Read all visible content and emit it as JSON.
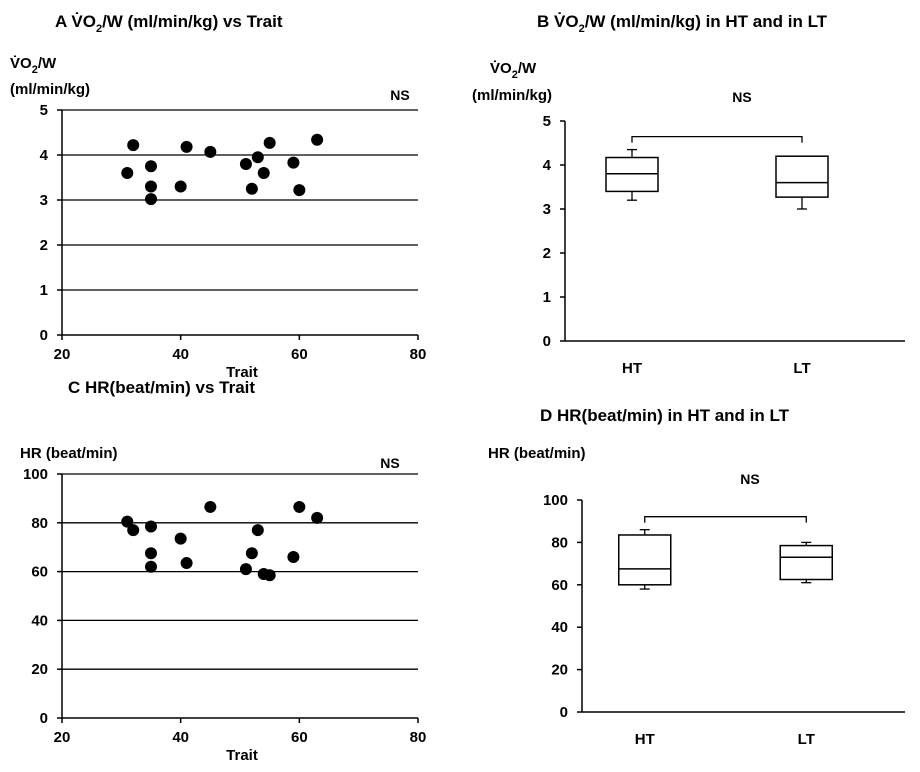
{
  "chart_data": [
    {
      "panel": "A",
      "type": "scatter",
      "title": "VO2/W (ml/min/kg) vs Trait",
      "title_label": "A",
      "title_parts": {
        "sym": "V̇O",
        "sub": "2",
        "rest": "/W (ml/min/kg) vs Trait"
      },
      "ylabel_lines": [
        "V̇O2/W",
        "(ml/min/kg)"
      ],
      "ylabel_parts": {
        "sym": "V̇O",
        "sub": "2",
        "rest": "/W"
      },
      "ylabel_units": "(ml/min/kg)",
      "xlabel": "Trait",
      "xlim": [
        20,
        80
      ],
      "xticks": [
        20,
        40,
        60,
        80
      ],
      "ylim": [
        0,
        5
      ],
      "yticks": [
        0,
        1,
        2,
        3,
        4,
        5
      ],
      "grid": "horizontal",
      "annotation": "NS",
      "points": [
        {
          "x": 31,
          "y": 3.6
        },
        {
          "x": 32,
          "y": 4.22
        },
        {
          "x": 35,
          "y": 3.75
        },
        {
          "x": 35,
          "y": 3.3
        },
        {
          "x": 35,
          "y": 3.02
        },
        {
          "x": 40,
          "y": 3.3
        },
        {
          "x": 41,
          "y": 4.18
        },
        {
          "x": 45,
          "y": 4.07
        },
        {
          "x": 51,
          "y": 3.8
        },
        {
          "x": 52,
          "y": 3.25
        },
        {
          "x": 53,
          "y": 3.95
        },
        {
          "x": 54,
          "y": 3.6
        },
        {
          "x": 55,
          "y": 4.27
        },
        {
          "x": 59,
          "y": 3.83
        },
        {
          "x": 60,
          "y": 3.22
        },
        {
          "x": 63,
          "y": 4.34
        }
      ]
    },
    {
      "panel": "B",
      "type": "box",
      "title": "VO2/W (ml/min/kg) in HT and in LT",
      "title_label": "B",
      "title_parts": {
        "sym": "V̇O",
        "sub": "2",
        "rest": "/W (ml/min/kg) in HT and in LT"
      },
      "ylabel_parts": {
        "sym": "V̇O",
        "sub": "2",
        "rest": "/W"
      },
      "ylabel_units": "(ml/min/kg)",
      "categories": [
        "HT",
        "LT"
      ],
      "ylim": [
        0,
        5
      ],
      "yticks": [
        0,
        1,
        2,
        3,
        4,
        5
      ],
      "annotation": "NS",
      "boxes": [
        {
          "name": "HT",
          "min": 3.2,
          "q1": 3.4,
          "median": 3.8,
          "q3": 4.17,
          "max": 4.35
        },
        {
          "name": "LT",
          "min": 3.0,
          "q1": 3.27,
          "median": 3.6,
          "q3": 4.2,
          "max": 4.2
        }
      ]
    },
    {
      "panel": "C",
      "type": "scatter",
      "title": "HR(beat/min) vs Trait",
      "title_label": "C",
      "ylabel": "HR (beat/min)",
      "xlabel": "Trait",
      "xlim": [
        20,
        80
      ],
      "xticks": [
        20,
        40,
        60,
        80
      ],
      "ylim": [
        0,
        100
      ],
      "yticks": [
        0,
        20,
        40,
        60,
        80,
        100
      ],
      "grid": "horizontal",
      "annotation": "NS",
      "points": [
        {
          "x": 31,
          "y": 80.5
        },
        {
          "x": 32,
          "y": 77
        },
        {
          "x": 35,
          "y": 78.5
        },
        {
          "x": 35,
          "y": 67.5
        },
        {
          "x": 35,
          "y": 62
        },
        {
          "x": 40,
          "y": 73.5
        },
        {
          "x": 41,
          "y": 63.5
        },
        {
          "x": 45,
          "y": 86.5
        },
        {
          "x": 51,
          "y": 61
        },
        {
          "x": 52,
          "y": 67.5
        },
        {
          "x": 53,
          "y": 77
        },
        {
          "x": 54,
          "y": 59
        },
        {
          "x": 55,
          "y": 58.5
        },
        {
          "x": 59,
          "y": 66
        },
        {
          "x": 60,
          "y": 86.5
        },
        {
          "x": 63,
          "y": 82
        }
      ]
    },
    {
      "panel": "D",
      "type": "box",
      "title": "HR(beat/min) in HT and in LT",
      "title_label": "D",
      "ylabel": "HR (beat/min)",
      "categories": [
        "HT",
        "LT"
      ],
      "ylim": [
        0,
        100
      ],
      "yticks": [
        0,
        20,
        40,
        60,
        80,
        100
      ],
      "annotation": "NS",
      "boxes": [
        {
          "name": "HT",
          "min": 58,
          "q1": 60,
          "median": 67.5,
          "q3": 83.5,
          "max": 86
        },
        {
          "name": "LT",
          "min": 61,
          "q1": 62.5,
          "median": 73,
          "q3": 78.5,
          "max": 80
        }
      ]
    }
  ]
}
